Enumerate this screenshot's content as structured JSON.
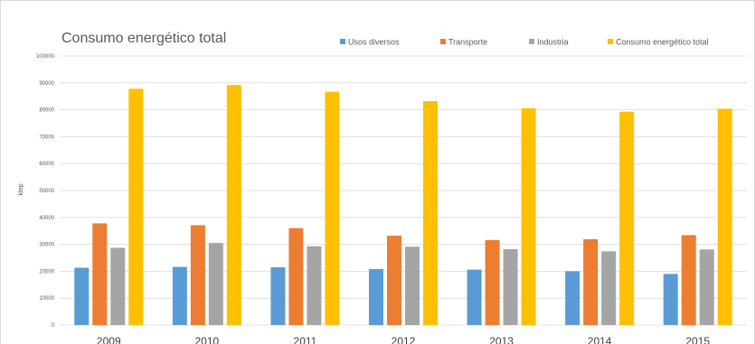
{
  "chart_data": {
    "type": "bar",
    "title": "Consumo energético total",
    "ylabel": "ktep",
    "xlabel": "",
    "ylim": [
      0,
      100000
    ],
    "yticks": [
      0,
      10000,
      20000,
      30000,
      40000,
      50000,
      60000,
      70000,
      80000,
      90000,
      100000
    ],
    "grid": true,
    "legend_position": "top-right",
    "categories": [
      "2009",
      "2010",
      "2011",
      "2012",
      "2013",
      "2014",
      "2015"
    ],
    "series": [
      {
        "name": "Usos diversos",
        "color": "#5b9bd5",
        "values": [
          21300,
          21600,
          21500,
          20800,
          20600,
          20000,
          19000
        ]
      },
      {
        "name": "Transporte",
        "color": "#ed7d31",
        "values": [
          37800,
          37100,
          36000,
          33200,
          31600,
          31900,
          33400
        ]
      },
      {
        "name": "Industria",
        "color": "#a5a5a5",
        "values": [
          28700,
          30500,
          29300,
          29100,
          28200,
          27400,
          28100
        ]
      },
      {
        "name": "Consumo energético total",
        "color": "#ffc000",
        "values": [
          87800,
          89200,
          86700,
          83200,
          80600,
          79300,
          80400
        ]
      }
    ]
  }
}
